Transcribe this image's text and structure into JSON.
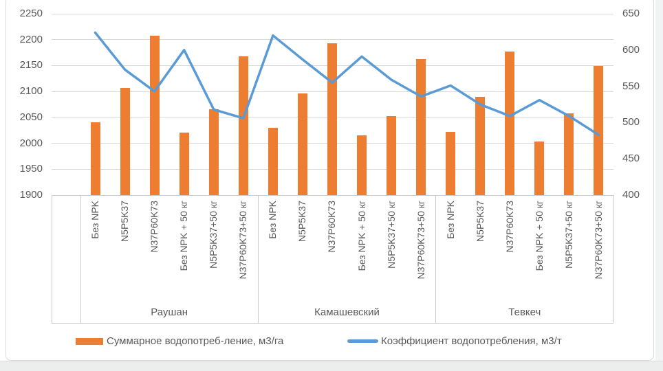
{
  "chart_data": {
    "type": "bar",
    "subtype": "combo-bar-line-dual-axis",
    "groups": [
      "Раушан",
      "Камашевский",
      "Тевкеч"
    ],
    "categories": [
      "Без NPK",
      "N5P5K37",
      "N37P60K73",
      "Без NPK + 50 кг",
      "N5P5K37+50 кг",
      "N37P60K73+50 кг"
    ],
    "series": [
      {
        "name": "Суммарное водопотреб-ление, м3/га",
        "type": "bar",
        "axis": "left",
        "color": "#ED7D31",
        "values": [
          [
            2040,
            2107,
            2207,
            2021,
            2066,
            2168
          ],
          [
            2030,
            2096,
            2193,
            2016,
            2053,
            2162
          ],
          [
            2022,
            2089,
            2177,
            2003,
            2058,
            2149
          ]
        ]
      },
      {
        "name": "Коэффициент водопотребления, м3/т",
        "type": "line",
        "axis": "right",
        "color": "#5B9BD5",
        "values": [
          [
            624,
            573,
            543,
            600,
            518,
            506
          ],
          [
            620,
            587,
            555,
            591,
            559,
            536
          ],
          [
            551,
            525,
            509,
            531,
            509,
            483
          ]
        ]
      }
    ],
    "left_axis": {
      "min": 1900,
      "max": 2250,
      "step": 50,
      "tick_labels": [
        "1900",
        "1950",
        "2000",
        "2050",
        "2100",
        "2150",
        "2200",
        "2250"
      ]
    },
    "right_axis": {
      "min": 400,
      "max": 650,
      "step": 50,
      "tick_labels": [
        "400",
        "450",
        "500",
        "550",
        "600",
        "650"
      ]
    },
    "grid": true,
    "legend_position": "bottom",
    "title": ""
  },
  "legend": {
    "bar_label": "Суммарное водопотреб-ление, м3/га",
    "line_label": "Коэффициент водопотребления, м3/т"
  },
  "colors": {
    "bar": "#ED7D31",
    "line": "#5B9BD5",
    "grid": "#D9D9D9",
    "band_line": "#C9CCCE",
    "axis_text": "#595959",
    "frame_border": "#D9D9D9"
  }
}
